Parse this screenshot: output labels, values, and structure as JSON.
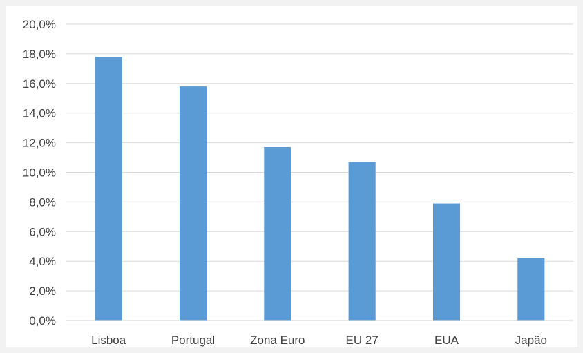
{
  "chart_data": {
    "type": "bar",
    "title": "",
    "xlabel": "",
    "ylabel": "",
    "categories": [
      "Lisboa",
      "Portugal",
      "Zona Euro",
      "EU 27",
      "EUA",
      "Japão"
    ],
    "values": [
      17.8,
      15.8,
      11.7,
      10.7,
      7.9,
      4.2
    ],
    "ylim": [
      0,
      20
    ],
    "yticks": [
      "0,0%",
      "2,0%",
      "4,0%",
      "6,0%",
      "8,0%",
      "10,0%",
      "12,0%",
      "14,0%",
      "16,0%",
      "18,0%",
      "20,0%"
    ],
    "grid": true,
    "legend": "none",
    "colors": {
      "bar": "#5b9bd5",
      "grid": "#d9d9d9",
      "text": "#404040",
      "frame": "#f2f2f2"
    }
  }
}
